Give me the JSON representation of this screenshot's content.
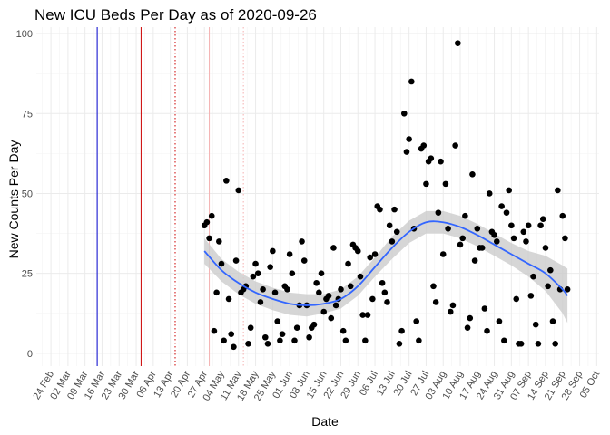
{
  "chart_data": {
    "type": "scatter",
    "title": "New ICU Beds Per Day as of 2020-09-26",
    "xlabel": "Date",
    "ylabel": "New Counts Per Day",
    "xlim": [
      "2020-02-18",
      "2020-10-06"
    ],
    "ylim": [
      -4,
      102
    ],
    "y_ticks": [
      0,
      25,
      50,
      75,
      100
    ],
    "x_ticks": [
      "2020-02-24",
      "2020-03-02",
      "2020-03-09",
      "2020-03-16",
      "2020-03-23",
      "2020-03-30",
      "2020-04-06",
      "2020-04-13",
      "2020-04-20",
      "2020-04-27",
      "2020-05-04",
      "2020-05-11",
      "2020-05-18",
      "2020-05-25",
      "2020-06-01",
      "2020-06-08",
      "2020-06-15",
      "2020-06-22",
      "2020-06-29",
      "2020-07-06",
      "2020-07-13",
      "2020-07-20",
      "2020-07-27",
      "2020-08-03",
      "2020-08-10",
      "2020-08-17",
      "2020-08-24",
      "2020-08-31",
      "2020-09-07",
      "2020-09-14",
      "2020-09-21",
      "2020-09-28",
      "2020-10-05"
    ],
    "x_tick_labels": [
      "24 Feb",
      "02 Mar",
      "09 Mar",
      "16 Mar",
      "23 Mar",
      "30 Mar",
      "06 Apr",
      "13 Apr",
      "20 Apr",
      "27 Apr",
      "04 May",
      "11 May",
      "18 May",
      "25 May",
      "01 Jun",
      "08 Jun",
      "15 Jun",
      "22 Jun",
      "29 Jun",
      "06 Jul",
      "13 Jul",
      "20 Jul",
      "27 Jul",
      "03 Aug",
      "10 Aug",
      "17 Aug",
      "24 Aug",
      "31 Aug",
      "07 Sep",
      "14 Sep",
      "21 Sep",
      "28 Sep",
      "05 Oct"
    ],
    "grid": true,
    "vlines": [
      {
        "x": "2020-03-14",
        "color": "#0000cc",
        "style": "solid"
      },
      {
        "x": "2020-04-01",
        "color": "#cc0000",
        "style": "solid"
      },
      {
        "x": "2020-04-15",
        "color": "#cc0000",
        "style": "dotted"
      },
      {
        "x": "2020-04-29",
        "color": "#f4b0b0",
        "style": "solid"
      },
      {
        "x": "2020-05-13",
        "color": "#f4b0b0",
        "style": "dotted"
      }
    ],
    "points": [
      {
        "x": "2020-04-27",
        "y": 40
      },
      {
        "x": "2020-04-28",
        "y": 41
      },
      {
        "x": "2020-04-29",
        "y": 36
      },
      {
        "x": "2020-04-30",
        "y": 43
      },
      {
        "x": "2020-05-01",
        "y": 7
      },
      {
        "x": "2020-05-02",
        "y": 19
      },
      {
        "x": "2020-05-03",
        "y": 35
      },
      {
        "x": "2020-05-04",
        "y": 28
      },
      {
        "x": "2020-05-05",
        "y": 4
      },
      {
        "x": "2020-05-06",
        "y": 54
      },
      {
        "x": "2020-05-07",
        "y": 17
      },
      {
        "x": "2020-05-08",
        "y": 6
      },
      {
        "x": "2020-05-09",
        "y": 2
      },
      {
        "x": "2020-05-10",
        "y": 29
      },
      {
        "x": "2020-05-11",
        "y": 51
      },
      {
        "x": "2020-05-12",
        "y": 19
      },
      {
        "x": "2020-05-13",
        "y": 20
      },
      {
        "x": "2020-05-14",
        "y": 21
      },
      {
        "x": "2020-05-15",
        "y": 3
      },
      {
        "x": "2020-05-16",
        "y": 8
      },
      {
        "x": "2020-05-17",
        "y": 24
      },
      {
        "x": "2020-05-18",
        "y": 28
      },
      {
        "x": "2020-05-19",
        "y": 25
      },
      {
        "x": "2020-05-20",
        "y": 16
      },
      {
        "x": "2020-05-21",
        "y": 20
      },
      {
        "x": "2020-05-22",
        "y": 5
      },
      {
        "x": "2020-05-23",
        "y": 3
      },
      {
        "x": "2020-05-24",
        "y": 27
      },
      {
        "x": "2020-05-25",
        "y": 32
      },
      {
        "x": "2020-05-26",
        "y": 19
      },
      {
        "x": "2020-05-27",
        "y": 10
      },
      {
        "x": "2020-05-28",
        "y": 4
      },
      {
        "x": "2020-05-29",
        "y": 6
      },
      {
        "x": "2020-05-30",
        "y": 21
      },
      {
        "x": "2020-05-31",
        "y": 20
      },
      {
        "x": "2020-06-01",
        "y": 31
      },
      {
        "x": "2020-06-02",
        "y": 25
      },
      {
        "x": "2020-06-03",
        "y": 4
      },
      {
        "x": "2020-06-04",
        "y": 8
      },
      {
        "x": "2020-06-05",
        "y": 15
      },
      {
        "x": "2020-06-06",
        "y": 35
      },
      {
        "x": "2020-06-07",
        "y": 29
      },
      {
        "x": "2020-06-08",
        "y": 15
      },
      {
        "x": "2020-06-09",
        "y": 5
      },
      {
        "x": "2020-06-10",
        "y": 8
      },
      {
        "x": "2020-06-11",
        "y": 9
      },
      {
        "x": "2020-06-12",
        "y": 22
      },
      {
        "x": "2020-06-13",
        "y": 19
      },
      {
        "x": "2020-06-14",
        "y": 25
      },
      {
        "x": "2020-06-15",
        "y": 13
      },
      {
        "x": "2020-06-16",
        "y": 17
      },
      {
        "x": "2020-06-17",
        "y": 18
      },
      {
        "x": "2020-06-18",
        "y": 11
      },
      {
        "x": "2020-06-19",
        "y": 33
      },
      {
        "x": "2020-06-20",
        "y": 15
      },
      {
        "x": "2020-06-21",
        "y": 17
      },
      {
        "x": "2020-06-22",
        "y": 20
      },
      {
        "x": "2020-06-23",
        "y": 7
      },
      {
        "x": "2020-06-24",
        "y": 4
      },
      {
        "x": "2020-06-25",
        "y": 28
      },
      {
        "x": "2020-06-26",
        "y": 21
      },
      {
        "x": "2020-06-27",
        "y": 34
      },
      {
        "x": "2020-06-28",
        "y": 33
      },
      {
        "x": "2020-06-29",
        "y": 32
      },
      {
        "x": "2020-06-30",
        "y": 24
      },
      {
        "x": "2020-07-01",
        "y": 12
      },
      {
        "x": "2020-07-02",
        "y": 4
      },
      {
        "x": "2020-07-03",
        "y": 12
      },
      {
        "x": "2020-07-04",
        "y": 30
      },
      {
        "x": "2020-07-05",
        "y": 17
      },
      {
        "x": "2020-07-06",
        "y": 31
      },
      {
        "x": "2020-07-07",
        "y": 46
      },
      {
        "x": "2020-07-08",
        "y": 45
      },
      {
        "x": "2020-07-09",
        "y": 22
      },
      {
        "x": "2020-07-10",
        "y": 19
      },
      {
        "x": "2020-07-11",
        "y": 16
      },
      {
        "x": "2020-07-12",
        "y": 40
      },
      {
        "x": "2020-07-13",
        "y": 35
      },
      {
        "x": "2020-07-14",
        "y": 45
      },
      {
        "x": "2020-07-15",
        "y": 38
      },
      {
        "x": "2020-07-16",
        "y": 3
      },
      {
        "x": "2020-07-17",
        "y": 7
      },
      {
        "x": "2020-07-18",
        "y": 75
      },
      {
        "x": "2020-07-19",
        "y": 63
      },
      {
        "x": "2020-07-20",
        "y": 67
      },
      {
        "x": "2020-07-21",
        "y": 85
      },
      {
        "x": "2020-07-22",
        "y": 39
      },
      {
        "x": "2020-07-23",
        "y": 10
      },
      {
        "x": "2020-07-24",
        "y": 4
      },
      {
        "x": "2020-07-25",
        "y": 64
      },
      {
        "x": "2020-07-26",
        "y": 65
      },
      {
        "x": "2020-07-27",
        "y": 53
      },
      {
        "x": "2020-07-28",
        "y": 60
      },
      {
        "x": "2020-07-29",
        "y": 61
      },
      {
        "x": "2020-07-30",
        "y": 21
      },
      {
        "x": "2020-07-31",
        "y": 16
      },
      {
        "x": "2020-08-01",
        "y": 44
      },
      {
        "x": "2020-08-02",
        "y": 60
      },
      {
        "x": "2020-08-03",
        "y": 31
      },
      {
        "x": "2020-08-04",
        "y": 53
      },
      {
        "x": "2020-08-05",
        "y": 39
      },
      {
        "x": "2020-08-06",
        "y": 13
      },
      {
        "x": "2020-08-07",
        "y": 15
      },
      {
        "x": "2020-08-08",
        "y": 65
      },
      {
        "x": "2020-08-09",
        "y": 97
      },
      {
        "x": "2020-08-10",
        "y": 34
      },
      {
        "x": "2020-08-11",
        "y": 36
      },
      {
        "x": "2020-08-12",
        "y": 43
      },
      {
        "x": "2020-08-13",
        "y": 8
      },
      {
        "x": "2020-08-14",
        "y": 11
      },
      {
        "x": "2020-08-15",
        "y": 56
      },
      {
        "x": "2020-08-16",
        "y": 29
      },
      {
        "x": "2020-08-17",
        "y": 39
      },
      {
        "x": "2020-08-18",
        "y": 33
      },
      {
        "x": "2020-08-19",
        "y": 33
      },
      {
        "x": "2020-08-20",
        "y": 14
      },
      {
        "x": "2020-08-21",
        "y": 7
      },
      {
        "x": "2020-08-22",
        "y": 50
      },
      {
        "x": "2020-08-23",
        "y": 38
      },
      {
        "x": "2020-08-24",
        "y": 37
      },
      {
        "x": "2020-08-25",
        "y": 35
      },
      {
        "x": "2020-08-26",
        "y": 10
      },
      {
        "x": "2020-08-27",
        "y": 46
      },
      {
        "x": "2020-08-28",
        "y": 4
      },
      {
        "x": "2020-08-29",
        "y": 44
      },
      {
        "x": "2020-08-30",
        "y": 51
      },
      {
        "x": "2020-08-31",
        "y": 40
      },
      {
        "x": "2020-09-01",
        "y": 36
      },
      {
        "x": "2020-09-02",
        "y": 17
      },
      {
        "x": "2020-09-03",
        "y": 3
      },
      {
        "x": "2020-09-04",
        "y": 3
      },
      {
        "x": "2020-09-05",
        "y": 38
      },
      {
        "x": "2020-09-06",
        "y": 35
      },
      {
        "x": "2020-09-07",
        "y": 40
      },
      {
        "x": "2020-09-08",
        "y": 18
      },
      {
        "x": "2020-09-09",
        "y": 24
      },
      {
        "x": "2020-09-10",
        "y": 9
      },
      {
        "x": "2020-09-11",
        "y": 3
      },
      {
        "x": "2020-09-12",
        "y": 40
      },
      {
        "x": "2020-09-13",
        "y": 42
      },
      {
        "x": "2020-09-14",
        "y": 33
      },
      {
        "x": "2020-09-15",
        "y": 21
      },
      {
        "x": "2020-09-16",
        "y": 26
      },
      {
        "x": "2020-09-17",
        "y": 10
      },
      {
        "x": "2020-09-18",
        "y": 3
      },
      {
        "x": "2020-09-19",
        "y": 51
      },
      {
        "x": "2020-09-20",
        "y": 20
      },
      {
        "x": "2020-09-21",
        "y": 43
      },
      {
        "x": "2020-09-22",
        "y": 36
      },
      {
        "x": "2020-09-23",
        "y": 20
      }
    ],
    "smooth": {
      "x": [
        "2020-04-27",
        "2020-05-04",
        "2020-05-11",
        "2020-05-18",
        "2020-05-25",
        "2020-06-01",
        "2020-06-08",
        "2020-06-15",
        "2020-06-22",
        "2020-06-29",
        "2020-07-06",
        "2020-07-13",
        "2020-07-20",
        "2020-07-27",
        "2020-08-03",
        "2020-08-10",
        "2020-08-17",
        "2020-08-24",
        "2020-08-31",
        "2020-09-07",
        "2020-09-14",
        "2020-09-21",
        "2020-09-23"
      ],
      "y": [
        32,
        26,
        22,
        19,
        17,
        15.5,
        15,
        15.5,
        17,
        21,
        27,
        33,
        38,
        41,
        41,
        39.5,
        37,
        34,
        31,
        28,
        25,
        20,
        18
      ],
      "lower": [
        28,
        22.5,
        18.5,
        15.5,
        13.5,
        12,
        11.5,
        12.5,
        14,
        18,
        24,
        29.5,
        34.5,
        37.5,
        37.5,
        36,
        33.5,
        30.5,
        27.5,
        24,
        19.5,
        12.5,
        9.5
      ],
      "upper": [
        36,
        29.5,
        25.5,
        22.5,
        20.5,
        19,
        18.5,
        18.5,
        20,
        24,
        30,
        36.5,
        41.5,
        44.5,
        44.5,
        43,
        40.5,
        37.5,
        34.5,
        32,
        30.5,
        27.5,
        26.5
      ],
      "line_color": "#3366ff",
      "band_color": "#cccccc"
    },
    "point_color": "#000000"
  }
}
